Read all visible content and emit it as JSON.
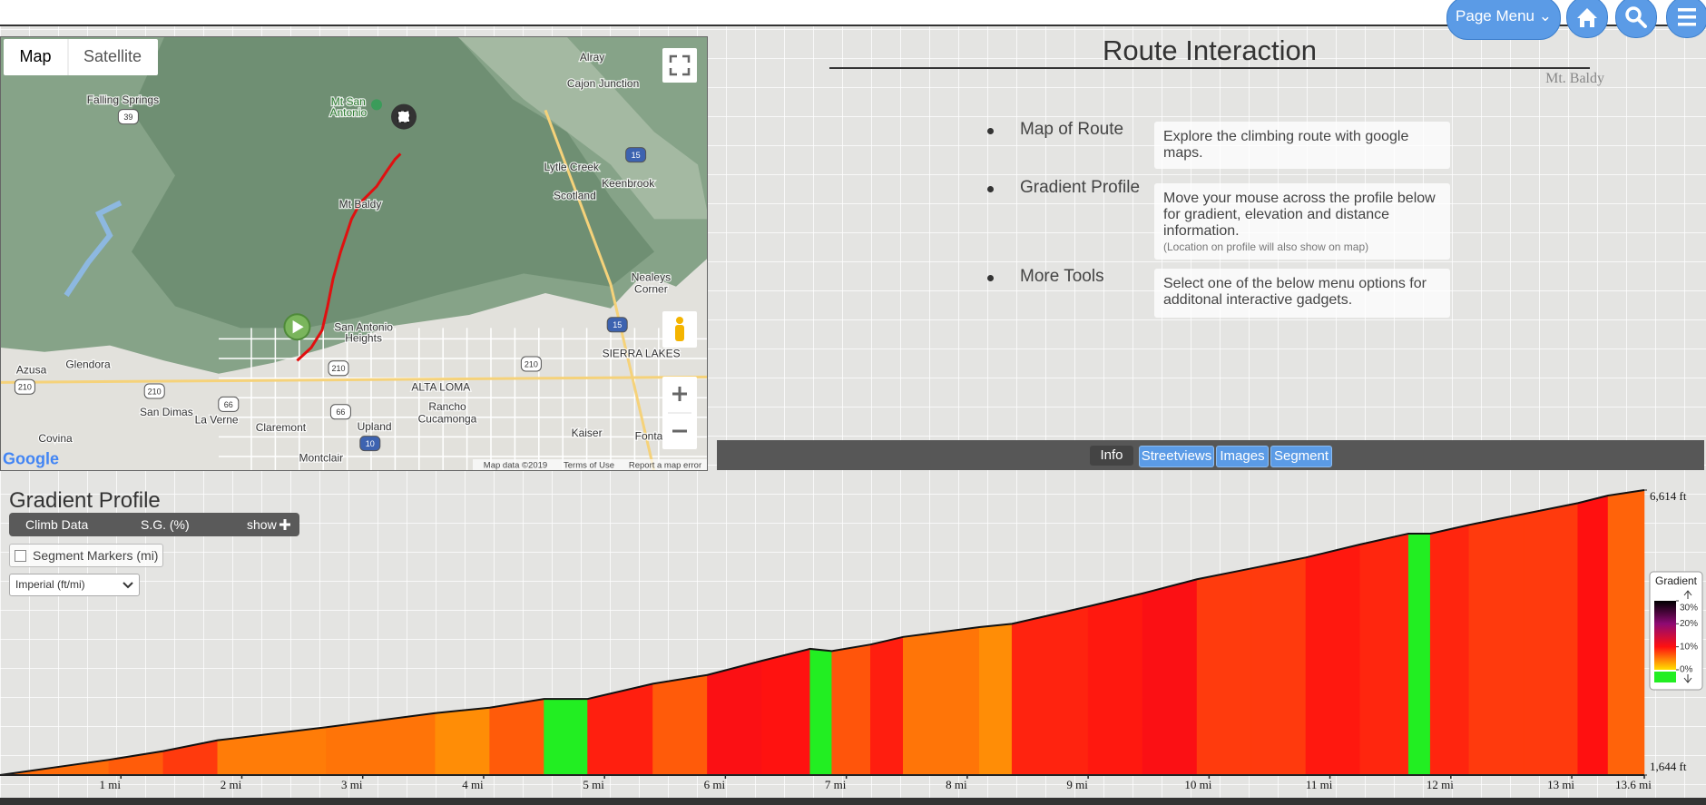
{
  "header": {
    "menu": "Page Menu"
  },
  "map": {
    "tabs": [
      "Map",
      "Satellite"
    ],
    "labels": [
      "Alray",
      "Cajon Junction",
      "Falling Springs",
      "Mt San",
      "Antonio",
      "Lytle Creek",
      "Keenbrook",
      "Scotland",
      "Mt Baldy",
      "Nealeys",
      "Corner",
      "San Antonio",
      "Heights",
      "SIERRA LAKES",
      "Azusa",
      "Glendora",
      "ALTA LOMA",
      "Rancho",
      "Cucamonga",
      "San Dimas",
      "La Verne",
      "Claremont",
      "Upland",
      "Kaiser",
      "Fonta",
      "Covina",
      "Montclair"
    ],
    "shields": [
      "39",
      "15",
      "15",
      "210",
      "210",
      "210",
      "210",
      "66",
      "66",
      "10"
    ],
    "logo": "Google",
    "footer": [
      "Map data ©2019",
      "Terms of Use",
      "Report a map error"
    ]
  },
  "info": {
    "title": "Route Interaction",
    "subtitle": "Mt. Baldy",
    "items": [
      {
        "label": "Map of Route",
        "text": "Explore the climbing route with google maps."
      },
      {
        "label": "Gradient Profile",
        "text": "Move your mouse across the profile below for gradient, elevation and distance information.",
        "note": "(Location on profile will also show on map)"
      },
      {
        "label": "More Tools",
        "text": "Select one of the below menu options for additonal interactive gadgets."
      }
    ],
    "tabs": [
      "Info",
      "Streetviews",
      "Images",
      "Segment"
    ]
  },
  "profile": {
    "title": "Gradient Profile",
    "bar": [
      "Climb Data",
      "S.G. (%)",
      "show"
    ],
    "checkbox": "Segment Markers (mi)",
    "units": "Imperial (ft/mi)",
    "chart": {
      "type": "area",
      "distance_mi": [
        0,
        0.9,
        1.35,
        1.8,
        2.7,
        3.6,
        4.05,
        4.5,
        4.86,
        5.4,
        5.85,
        6.3,
        6.7,
        6.88,
        7.2,
        7.47,
        8.1,
        8.37,
        9.0,
        9.45,
        9.9,
        10.35,
        10.8,
        11.25,
        11.65,
        11.83,
        12.15,
        12.6,
        13.05,
        13.3,
        13.6
      ],
      "elevation_ft": [
        1644,
        1910,
        2061,
        2251,
        2479,
        2725,
        2820,
        2972,
        2972,
        3237,
        3389,
        3636,
        3845,
        3807,
        3920,
        4053,
        4224,
        4281,
        4584,
        4812,
        5059,
        5248,
        5438,
        5666,
        5855,
        5855,
        6007,
        6197,
        6387,
        6519,
        6614
      ],
      "xlim": [
        0,
        13.6
      ],
      "ylim": [
        1644,
        6614
      ],
      "xticks": [
        {
          "value": 1,
          "label": "1 mi"
        },
        {
          "value": 2,
          "label": "2 mi"
        },
        {
          "value": 3,
          "label": "3 mi"
        },
        {
          "value": 4,
          "label": "4 mi"
        },
        {
          "value": 5,
          "label": "5 mi"
        },
        {
          "value": 6,
          "label": "6 mi"
        },
        {
          "value": 7,
          "label": "7 mi"
        },
        {
          "value": 8,
          "label": "8 mi"
        },
        {
          "value": 9,
          "label": "9 mi"
        },
        {
          "value": 10,
          "label": "10 mi"
        },
        {
          "value": 11,
          "label": "11 mi"
        },
        {
          "value": 12,
          "label": "12 mi"
        },
        {
          "value": 13,
          "label": "13 mi"
        },
        {
          "value": 13.6,
          "label": "13.6 mi"
        }
      ],
      "yticks": [
        {
          "value": 1644,
          "label": "1,644 ft"
        },
        {
          "value": 6614,
          "label": "6,614 ft"
        }
      ],
      "legend": {
        "title": "Gradient",
        "ticks": [
          {
            "value": 30,
            "label": "30%"
          },
          {
            "value": 20,
            "label": "20%"
          },
          {
            "value": 10,
            "label": "10%"
          },
          {
            "value": 0,
            "label": "0%"
          }
        ],
        "colors": [
          "#000000",
          "#8e0a73",
          "#ff1010",
          "#ffe000"
        ],
        "descent_color": "#22ee22"
      }
    }
  }
}
